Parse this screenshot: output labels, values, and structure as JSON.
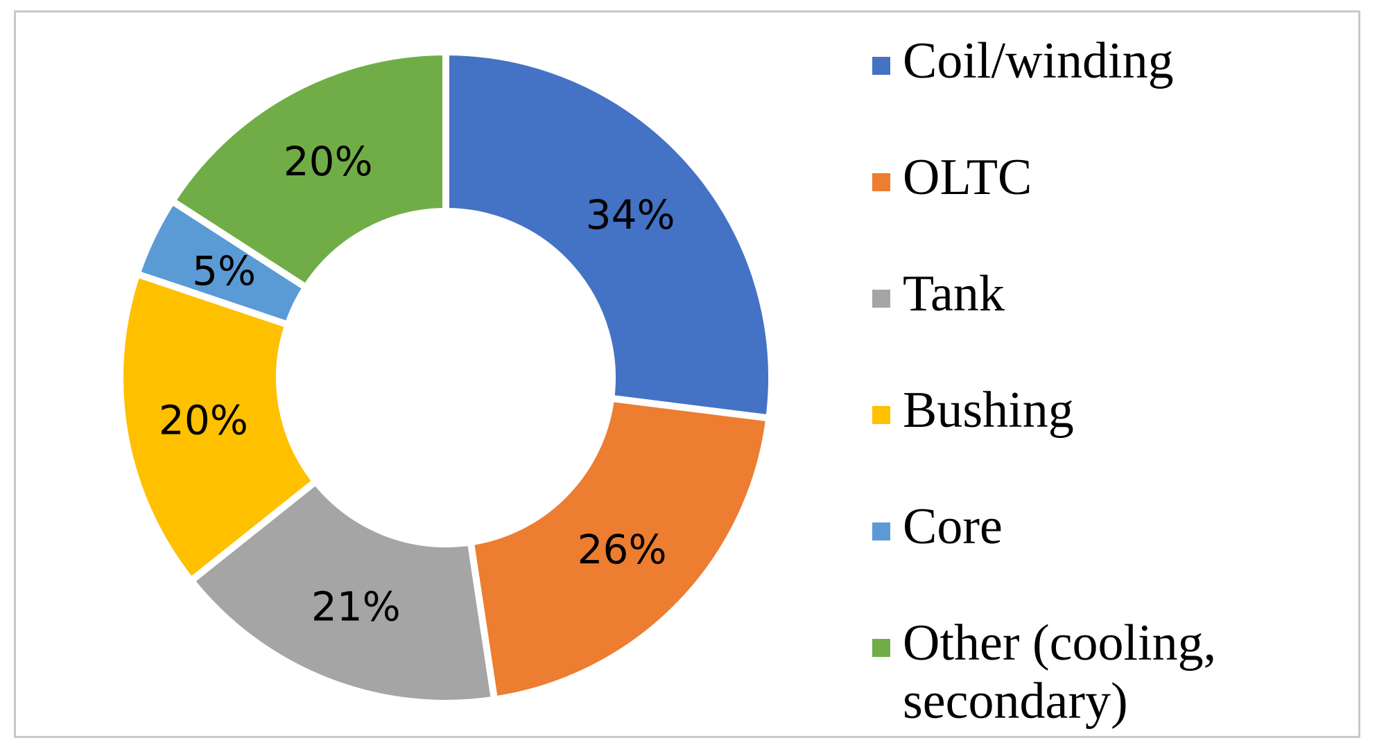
{
  "chart_data": {
    "type": "pie",
    "variant": "donut",
    "title": "",
    "categories": [
      "Coil/winding",
      "OLTC",
      "Tank",
      "Bushing",
      "Core",
      "Other (cooling, secondary)"
    ],
    "values": [
      34,
      26,
      21,
      20,
      5,
      20
    ],
    "labels": [
      "34%",
      "26%",
      "21%",
      "20%",
      "5%",
      "20%"
    ],
    "colors": [
      "#4472C4",
      "#ED7D31",
      "#A5A5A5",
      "#FFC000",
      "#5B9BD5",
      "#70AD47"
    ],
    "legend_position": "right"
  }
}
